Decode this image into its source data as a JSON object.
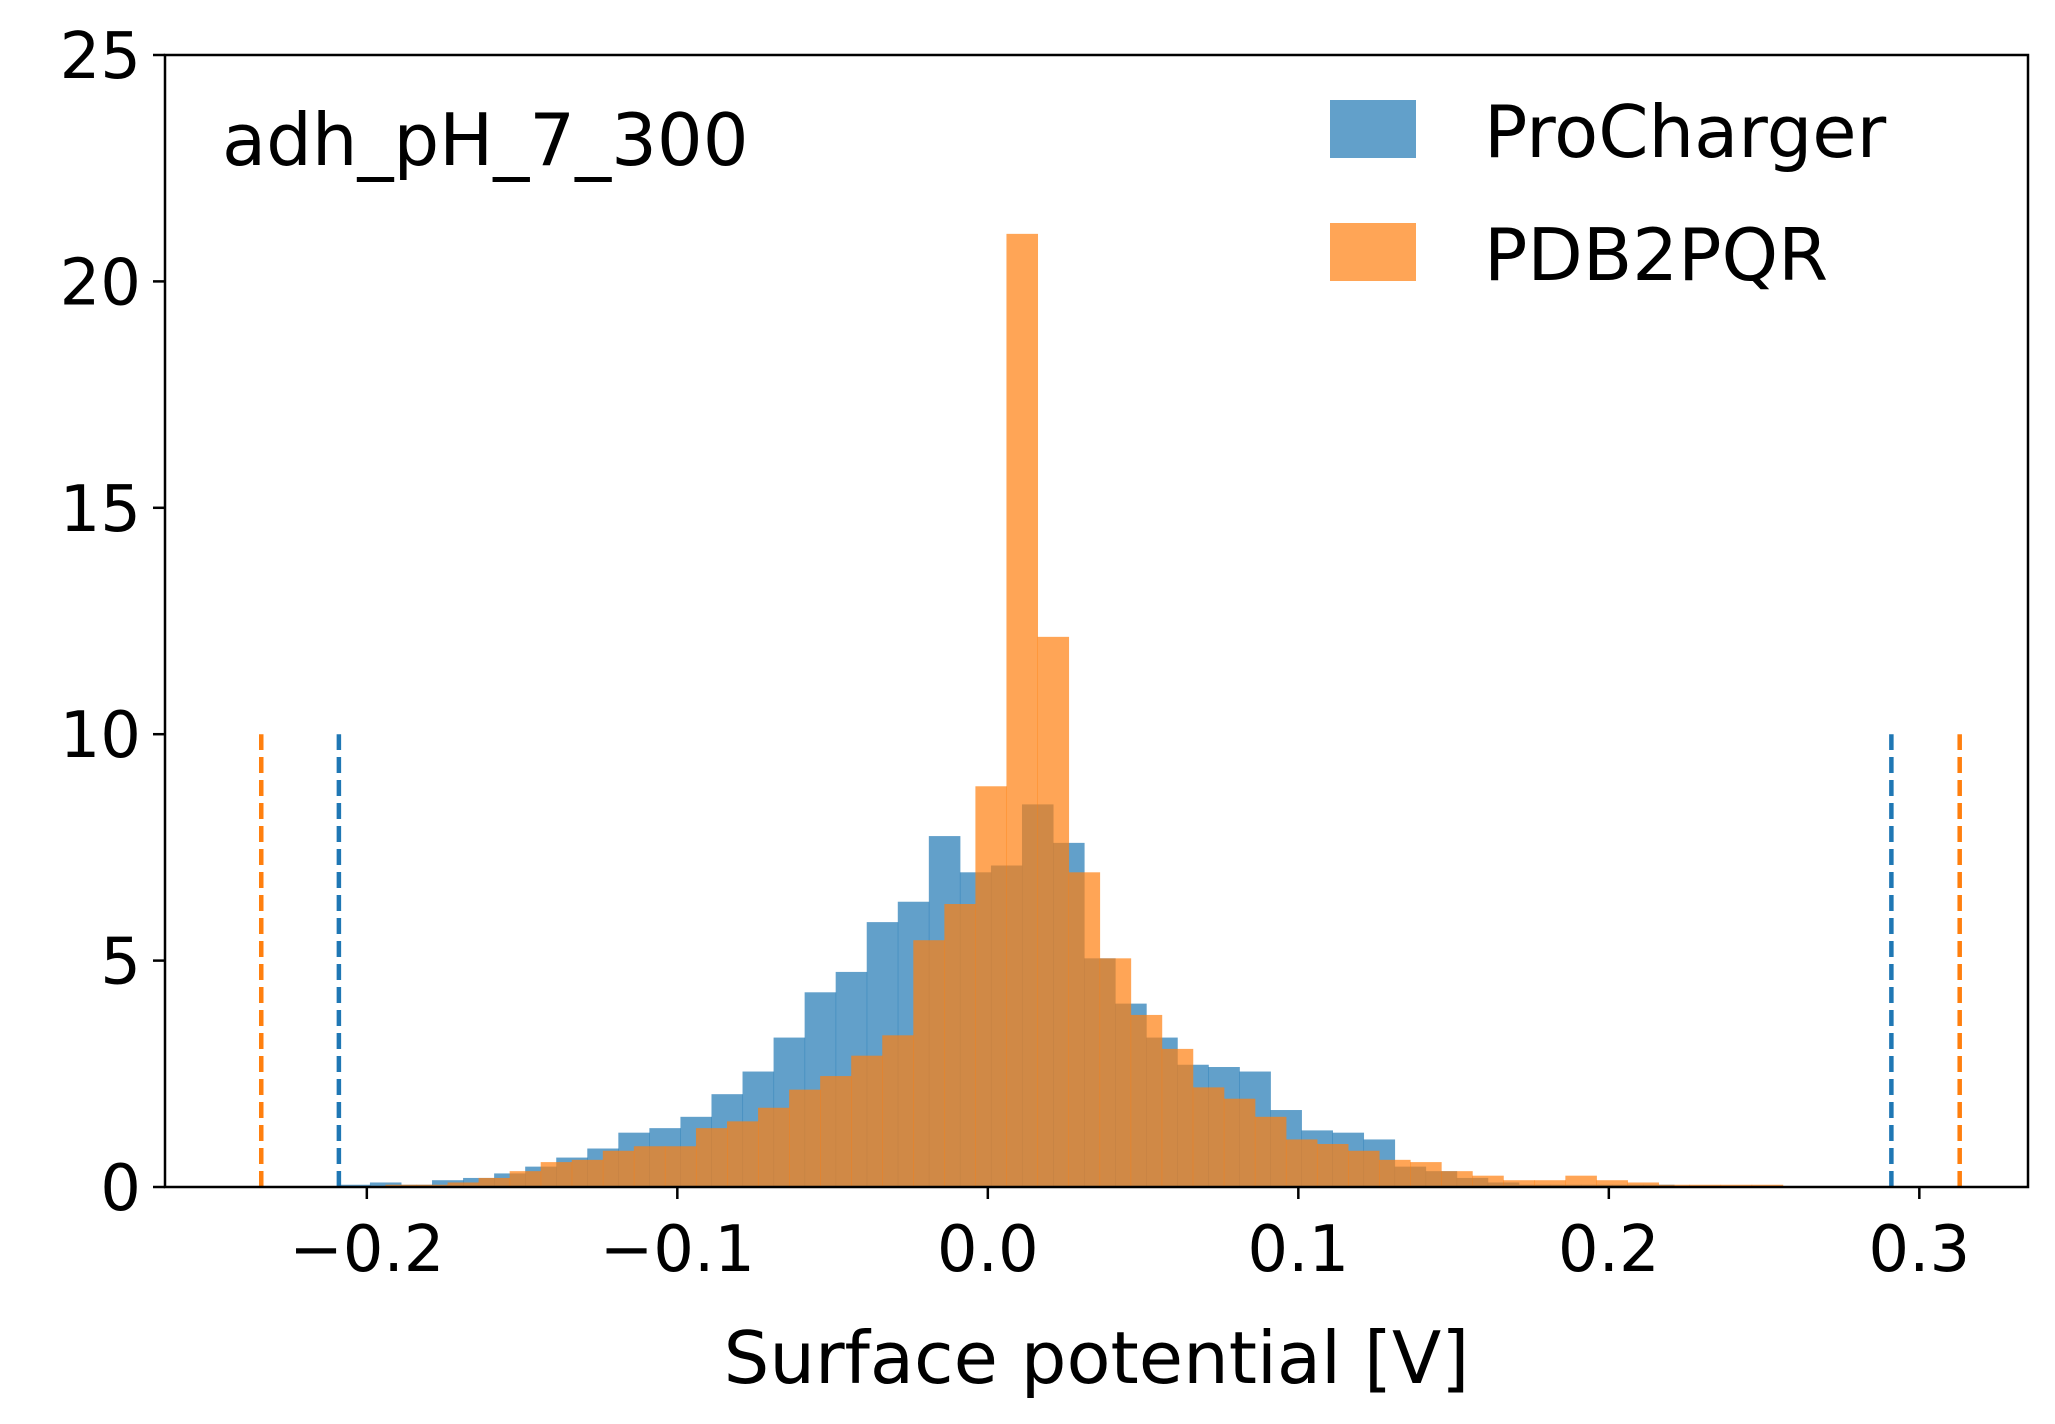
{
  "chart_data": {
    "type": "histogram",
    "annotation": "adh_pH_7_300",
    "xlabel": "Surface potential [V]",
    "ylabel": "",
    "xlim": [
      -0.265,
      0.335
    ],
    "ylim": [
      0,
      25
    ],
    "x_ticks": [
      -0.2,
      -0.1,
      0.0,
      0.1,
      0.2,
      0.3
    ],
    "x_tick_labels": [
      "−0.2",
      "−0.1",
      "0.0",
      "0.1",
      "0.2",
      "0.3"
    ],
    "y_ticks": [
      0,
      5,
      10,
      15,
      20,
      25
    ],
    "y_tick_labels": [
      "0",
      "5",
      "10",
      "15",
      "20",
      "25"
    ],
    "grid": false,
    "legend_position": "top-right",
    "series": [
      {
        "name": "ProCharger",
        "color": "#1f77b4",
        "opacity": 0.7,
        "bin_edges": [
          -0.209,
          -0.199,
          -0.189,
          -0.179,
          -0.169,
          -0.159,
          -0.149,
          -0.139,
          -0.129,
          -0.119,
          -0.109,
          -0.099,
          -0.089,
          -0.079,
          -0.069,
          -0.059,
          -0.049,
          -0.039,
          -0.029,
          -0.019,
          -0.009,
          0.001,
          0.011,
          0.021,
          0.031,
          0.041,
          0.051,
          0.061,
          0.071,
          0.081,
          0.091,
          0.101,
          0.111,
          0.121,
          0.131,
          0.141,
          0.151,
          0.161,
          0.171,
          0.181,
          0.191,
          0.201,
          0.211,
          0.221,
          0.231,
          0.241,
          0.251,
          0.261,
          0.271,
          0.281,
          0.291
        ],
        "counts": [
          0.05,
          0.1,
          0.05,
          0.15,
          0.2,
          0.3,
          0.45,
          0.65,
          0.85,
          1.2,
          1.3,
          1.55,
          2.05,
          2.55,
          3.3,
          4.3,
          4.75,
          5.85,
          6.3,
          7.75,
          6.95,
          7.1,
          8.45,
          7.6,
          5.05,
          4.05,
          3.3,
          2.7,
          2.65,
          2.55,
          1.7,
          1.25,
          1.2,
          1.05,
          0.45,
          0.35,
          0.2,
          0.1,
          0.05,
          0.05,
          0.05,
          0.05,
          0.05,
          0.02,
          0.02,
          0.02,
          0.0,
          0.0,
          0.0,
          0.0
        ]
      },
      {
        "name": "PDB2PQR",
        "color": "#ff7f0e",
        "opacity": 0.7,
        "bin_edges": [
          -0.234,
          -0.224,
          -0.214,
          -0.204,
          -0.194,
          -0.184,
          -0.174,
          -0.164,
          -0.154,
          -0.144,
          -0.134,
          -0.124,
          -0.114,
          -0.104,
          -0.094,
          -0.084,
          -0.074,
          -0.064,
          -0.054,
          -0.044,
          -0.034,
          -0.024,
          -0.014,
          -0.004,
          0.006,
          0.016,
          0.026,
          0.036,
          0.046,
          0.056,
          0.066,
          0.076,
          0.086,
          0.096,
          0.106,
          0.116,
          0.126,
          0.136,
          0.146,
          0.156,
          0.166,
          0.176,
          0.186,
          0.196,
          0.206,
          0.216,
          0.226,
          0.236,
          0.246,
          0.256,
          0.266,
          0.276,
          0.286,
          0.296,
          0.306,
          0.312
        ],
        "counts": [
          0.0,
          0.0,
          0.0,
          0.0,
          0.05,
          0.05,
          0.1,
          0.2,
          0.35,
          0.55,
          0.6,
          0.8,
          0.9,
          0.9,
          1.3,
          1.45,
          1.75,
          2.15,
          2.45,
          2.9,
          3.35,
          5.45,
          6.25,
          8.85,
          21.05,
          12.15,
          6.95,
          5.05,
          3.8,
          3.05,
          2.2,
          1.95,
          1.55,
          1.05,
          0.95,
          0.8,
          0.6,
          0.55,
          0.35,
          0.25,
          0.15,
          0.15,
          0.25,
          0.15,
          0.1,
          0.05,
          0.05,
          0.05,
          0.05,
          0.02,
          0.0,
          0.0,
          0.0,
          0.0,
          0.0
        ]
      }
    ],
    "vertical_lines": [
      {
        "x": -0.234,
        "y_max": 10,
        "color": "#ff7f0e",
        "style": "dashed"
      },
      {
        "x": -0.209,
        "y_max": 10,
        "color": "#1f77b4",
        "style": "dashed"
      },
      {
        "x": 0.291,
        "y_max": 10,
        "color": "#1f77b4",
        "style": "dashed"
      },
      {
        "x": 0.313,
        "y_max": 10,
        "color": "#ff7f0e",
        "style": "dashed"
      }
    ]
  }
}
